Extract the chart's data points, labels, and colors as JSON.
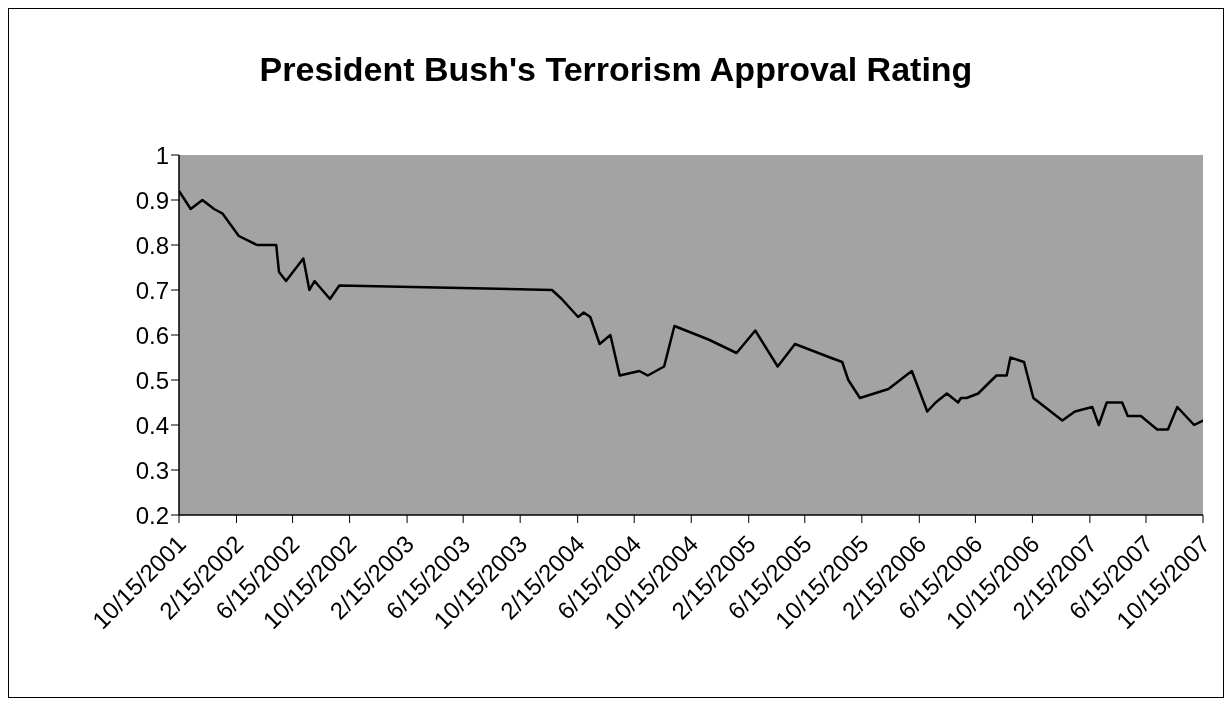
{
  "chart_data": {
    "type": "line",
    "title": "President Bush's Terrorism Approval Rating",
    "x": [
      "2001-10-15",
      "2001-11-09",
      "2001-12-04",
      "2001-12-29",
      "2002-01-16",
      "2002-02-20",
      "2002-03-31",
      "2002-05-11",
      "2002-05-17",
      "2002-06-01",
      "2002-07-08",
      "2002-07-21",
      "2002-08-01",
      "2002-09-03",
      "2002-09-23",
      "2003-12-22",
      "2004-01-12",
      "2004-02-16",
      "2004-02-28",
      "2004-03-13",
      "2004-04-02",
      "2004-04-25",
      "2004-05-15",
      "2004-06-26",
      "2004-07-14",
      "2004-08-18",
      "2004-09-09",
      "2004-11-21",
      "2005-01-20",
      "2005-03-01",
      "2005-04-18",
      "2005-05-25",
      "2005-08-08",
      "2005-09-03",
      "2005-09-16",
      "2005-10-11",
      "2005-12-11",
      "2006-01-30",
      "2006-03-04",
      "2006-03-22",
      "2006-04-15",
      "2006-05-09",
      "2006-05-15",
      "2006-05-27",
      "2006-06-21",
      "2006-07-30",
      "2006-08-21",
      "2006-08-29",
      "2006-09-27",
      "2006-10-17",
      "2006-12-18",
      "2007-01-14",
      "2007-02-20",
      "2007-03-06",
      "2007-03-23",
      "2007-04-25",
      "2007-05-07",
      "2007-06-04",
      "2007-07-09",
      "2007-08-01",
      "2007-08-21",
      "2007-09-26",
      "2007-10-15"
    ],
    "series": [
      {
        "color": "#000000",
        "values": [
          0.92,
          0.88,
          0.9,
          0.88,
          0.87,
          0.82,
          0.8,
          0.8,
          0.74,
          0.72,
          0.77,
          0.7,
          0.72,
          0.68,
          0.71,
          0.7,
          0.68,
          0.64,
          0.65,
          0.64,
          0.58,
          0.6,
          0.51,
          0.52,
          0.51,
          0.53,
          0.62,
          0.59,
          0.56,
          0.61,
          0.53,
          0.58,
          0.55,
          0.54,
          0.5,
          0.46,
          0.48,
          0.52,
          0.43,
          0.45,
          0.47,
          0.45,
          0.46,
          0.46,
          0.47,
          0.51,
          0.51,
          0.55,
          0.54,
          0.46,
          0.41,
          0.43,
          0.44,
          0.4,
          0.45,
          0.45,
          0.42,
          0.42,
          0.39,
          0.39,
          0.44,
          0.4,
          0.41
        ]
      }
    ],
    "xlim": [
      "2001-10-15",
      "2007-10-15"
    ],
    "xticks": [
      {
        "value": "2001-10-15",
        "label": "10/15/2001"
      },
      {
        "value": "2002-02-15",
        "label": "2/15/2002"
      },
      {
        "value": "2002-06-15",
        "label": "6/15/2002"
      },
      {
        "value": "2002-10-15",
        "label": "10/15/2002"
      },
      {
        "value": "2003-02-15",
        "label": "2/15/2003"
      },
      {
        "value": "2003-06-15",
        "label": "6/15/2003"
      },
      {
        "value": "2003-10-15",
        "label": "10/15/2003"
      },
      {
        "value": "2004-02-15",
        "label": "2/15/2004"
      },
      {
        "value": "2004-06-15",
        "label": "6/15/2004"
      },
      {
        "value": "2004-10-15",
        "label": "10/15/2004"
      },
      {
        "value": "2005-02-15",
        "label": "2/15/2005"
      },
      {
        "value": "2005-06-15",
        "label": "6/15/2005"
      },
      {
        "value": "2005-10-15",
        "label": "10/15/2005"
      },
      {
        "value": "2006-02-15",
        "label": "2/15/2006"
      },
      {
        "value": "2006-06-15",
        "label": "6/15/2006"
      },
      {
        "value": "2006-10-15",
        "label": "10/15/2006"
      },
      {
        "value": "2007-02-15",
        "label": "2/15/2007"
      },
      {
        "value": "2007-06-15",
        "label": "6/15/2007"
      },
      {
        "value": "2007-10-15",
        "label": "10/15/2007"
      }
    ],
    "ylim": [
      0.2,
      1
    ],
    "yticks": [
      0.2,
      0.3,
      0.4,
      0.5,
      0.6,
      0.7,
      0.8,
      0.9,
      1
    ]
  }
}
